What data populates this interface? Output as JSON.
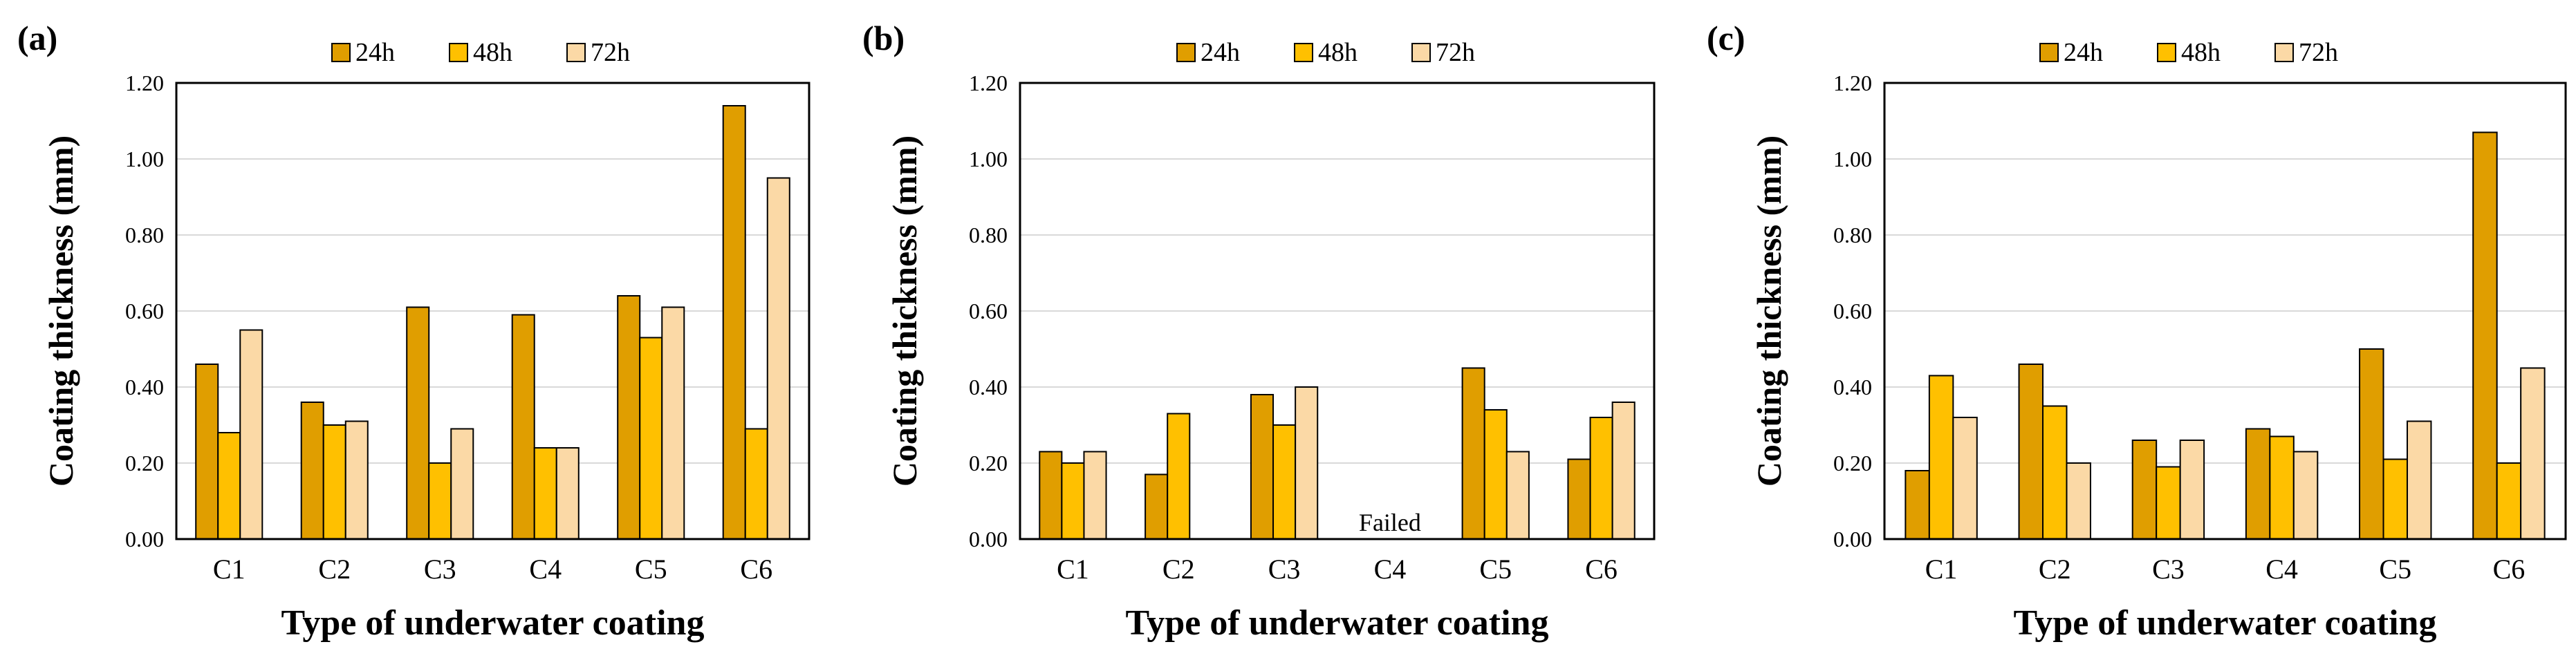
{
  "figure": {
    "legend_labels": [
      "24h",
      "48h",
      "72h"
    ]
  },
  "chart_data": [
    {
      "type": "bar",
      "panel_label": "(a)",
      "categories": [
        "C1",
        "C2",
        "C3",
        "C4",
        "C5",
        "C6"
      ],
      "series": [
        {
          "name": "24h",
          "color": "#E09E00",
          "values": [
            0.46,
            0.36,
            0.61,
            0.59,
            0.64,
            1.14
          ]
        },
        {
          "name": "48h",
          "color": "#FFC000",
          "values": [
            0.28,
            0.3,
            0.2,
            0.24,
            0.53,
            0.29
          ]
        },
        {
          "name": "72h",
          "color": "#FBD9A6",
          "values": [
            0.55,
            0.31,
            0.29,
            0.24,
            0.61,
            0.95
          ]
        }
      ],
      "xlabel": "Type of underwater coating",
      "ylabel": "Coating thickness (mm)",
      "ylim": [
        0,
        1.2
      ],
      "yticks": [
        "0.00",
        "0.20",
        "0.40",
        "0.60",
        "0.80",
        "1.00",
        "1.20"
      ],
      "grid": true,
      "legend": "top-center",
      "annotations": []
    },
    {
      "type": "bar",
      "panel_label": "(b)",
      "categories": [
        "C1",
        "C2",
        "C3",
        "C4",
        "C5",
        "C6"
      ],
      "series": [
        {
          "name": "24h",
          "color": "#E09E00",
          "values": [
            0.23,
            0.17,
            0.38,
            null,
            0.45,
            0.21
          ]
        },
        {
          "name": "48h",
          "color": "#FFC000",
          "values": [
            0.2,
            0.33,
            0.3,
            null,
            0.34,
            0.32
          ]
        },
        {
          "name": "72h",
          "color": "#FBD9A6",
          "values": [
            0.23,
            null,
            0.4,
            null,
            0.23,
            0.36
          ]
        }
      ],
      "xlabel": "Type of underwater coating",
      "ylabel": "Coating thickness (mm)",
      "ylim": [
        0,
        1.2
      ],
      "yticks": [
        "0.00",
        "0.20",
        "0.40",
        "0.60",
        "0.80",
        "1.00",
        "1.20"
      ],
      "grid": true,
      "legend": "top-center",
      "annotations": [
        {
          "category": "C4",
          "text": "Failed"
        }
      ]
    },
    {
      "type": "bar",
      "panel_label": "(c)",
      "categories": [
        "C1",
        "C2",
        "C3",
        "C4",
        "C5",
        "C6"
      ],
      "series": [
        {
          "name": "24h",
          "color": "#E09E00",
          "values": [
            0.18,
            0.46,
            0.26,
            0.29,
            0.5,
            1.07
          ]
        },
        {
          "name": "48h",
          "color": "#FFC000",
          "values": [
            0.43,
            0.35,
            0.19,
            0.27,
            0.21,
            0.2
          ]
        },
        {
          "name": "72h",
          "color": "#FBD9A6",
          "values": [
            0.32,
            0.2,
            0.26,
            0.23,
            0.31,
            0.45
          ]
        }
      ],
      "xlabel": "Type of underwater coating",
      "ylabel": "Coating thickness (mm)",
      "ylim": [
        0,
        1.2
      ],
      "yticks": [
        "0.00",
        "0.20",
        "0.40",
        "0.60",
        "0.80",
        "1.00",
        "1.20"
      ],
      "grid": true,
      "legend": "top-center",
      "annotations": []
    }
  ]
}
